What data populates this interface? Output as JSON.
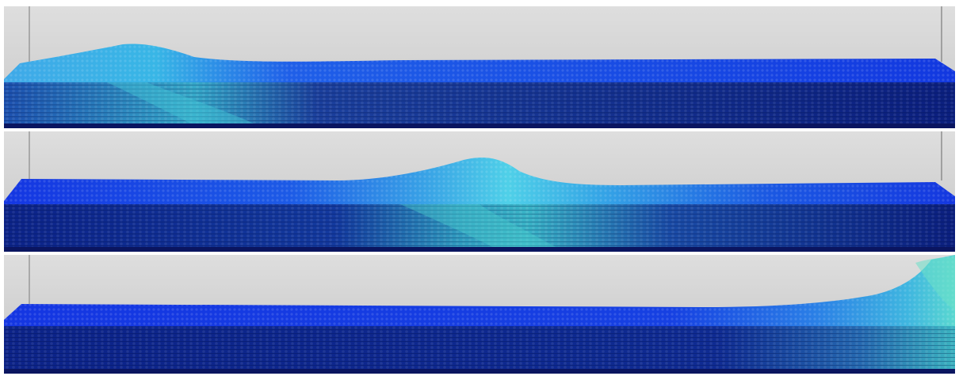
{
  "scene": {
    "description_free": true,
    "frame_count": 3,
    "colors": {
      "background_light": "#dcdcdc",
      "background_shadow": "#c3c3c3",
      "fluid_deep": "#0b1f7e",
      "fluid_surface": "#1437e6",
      "fluid_crest": "#44d3e6",
      "floor_line": "#0a1560"
    },
    "frames": [
      {
        "id": "frame-1",
        "wave_position": 0.14,
        "wave_height": 0.38
      },
      {
        "id": "frame-2",
        "wave_position": 0.52,
        "wave_height": 0.55
      },
      {
        "id": "frame-3",
        "wave_position": 0.98,
        "wave_height": 1.0
      }
    ]
  }
}
